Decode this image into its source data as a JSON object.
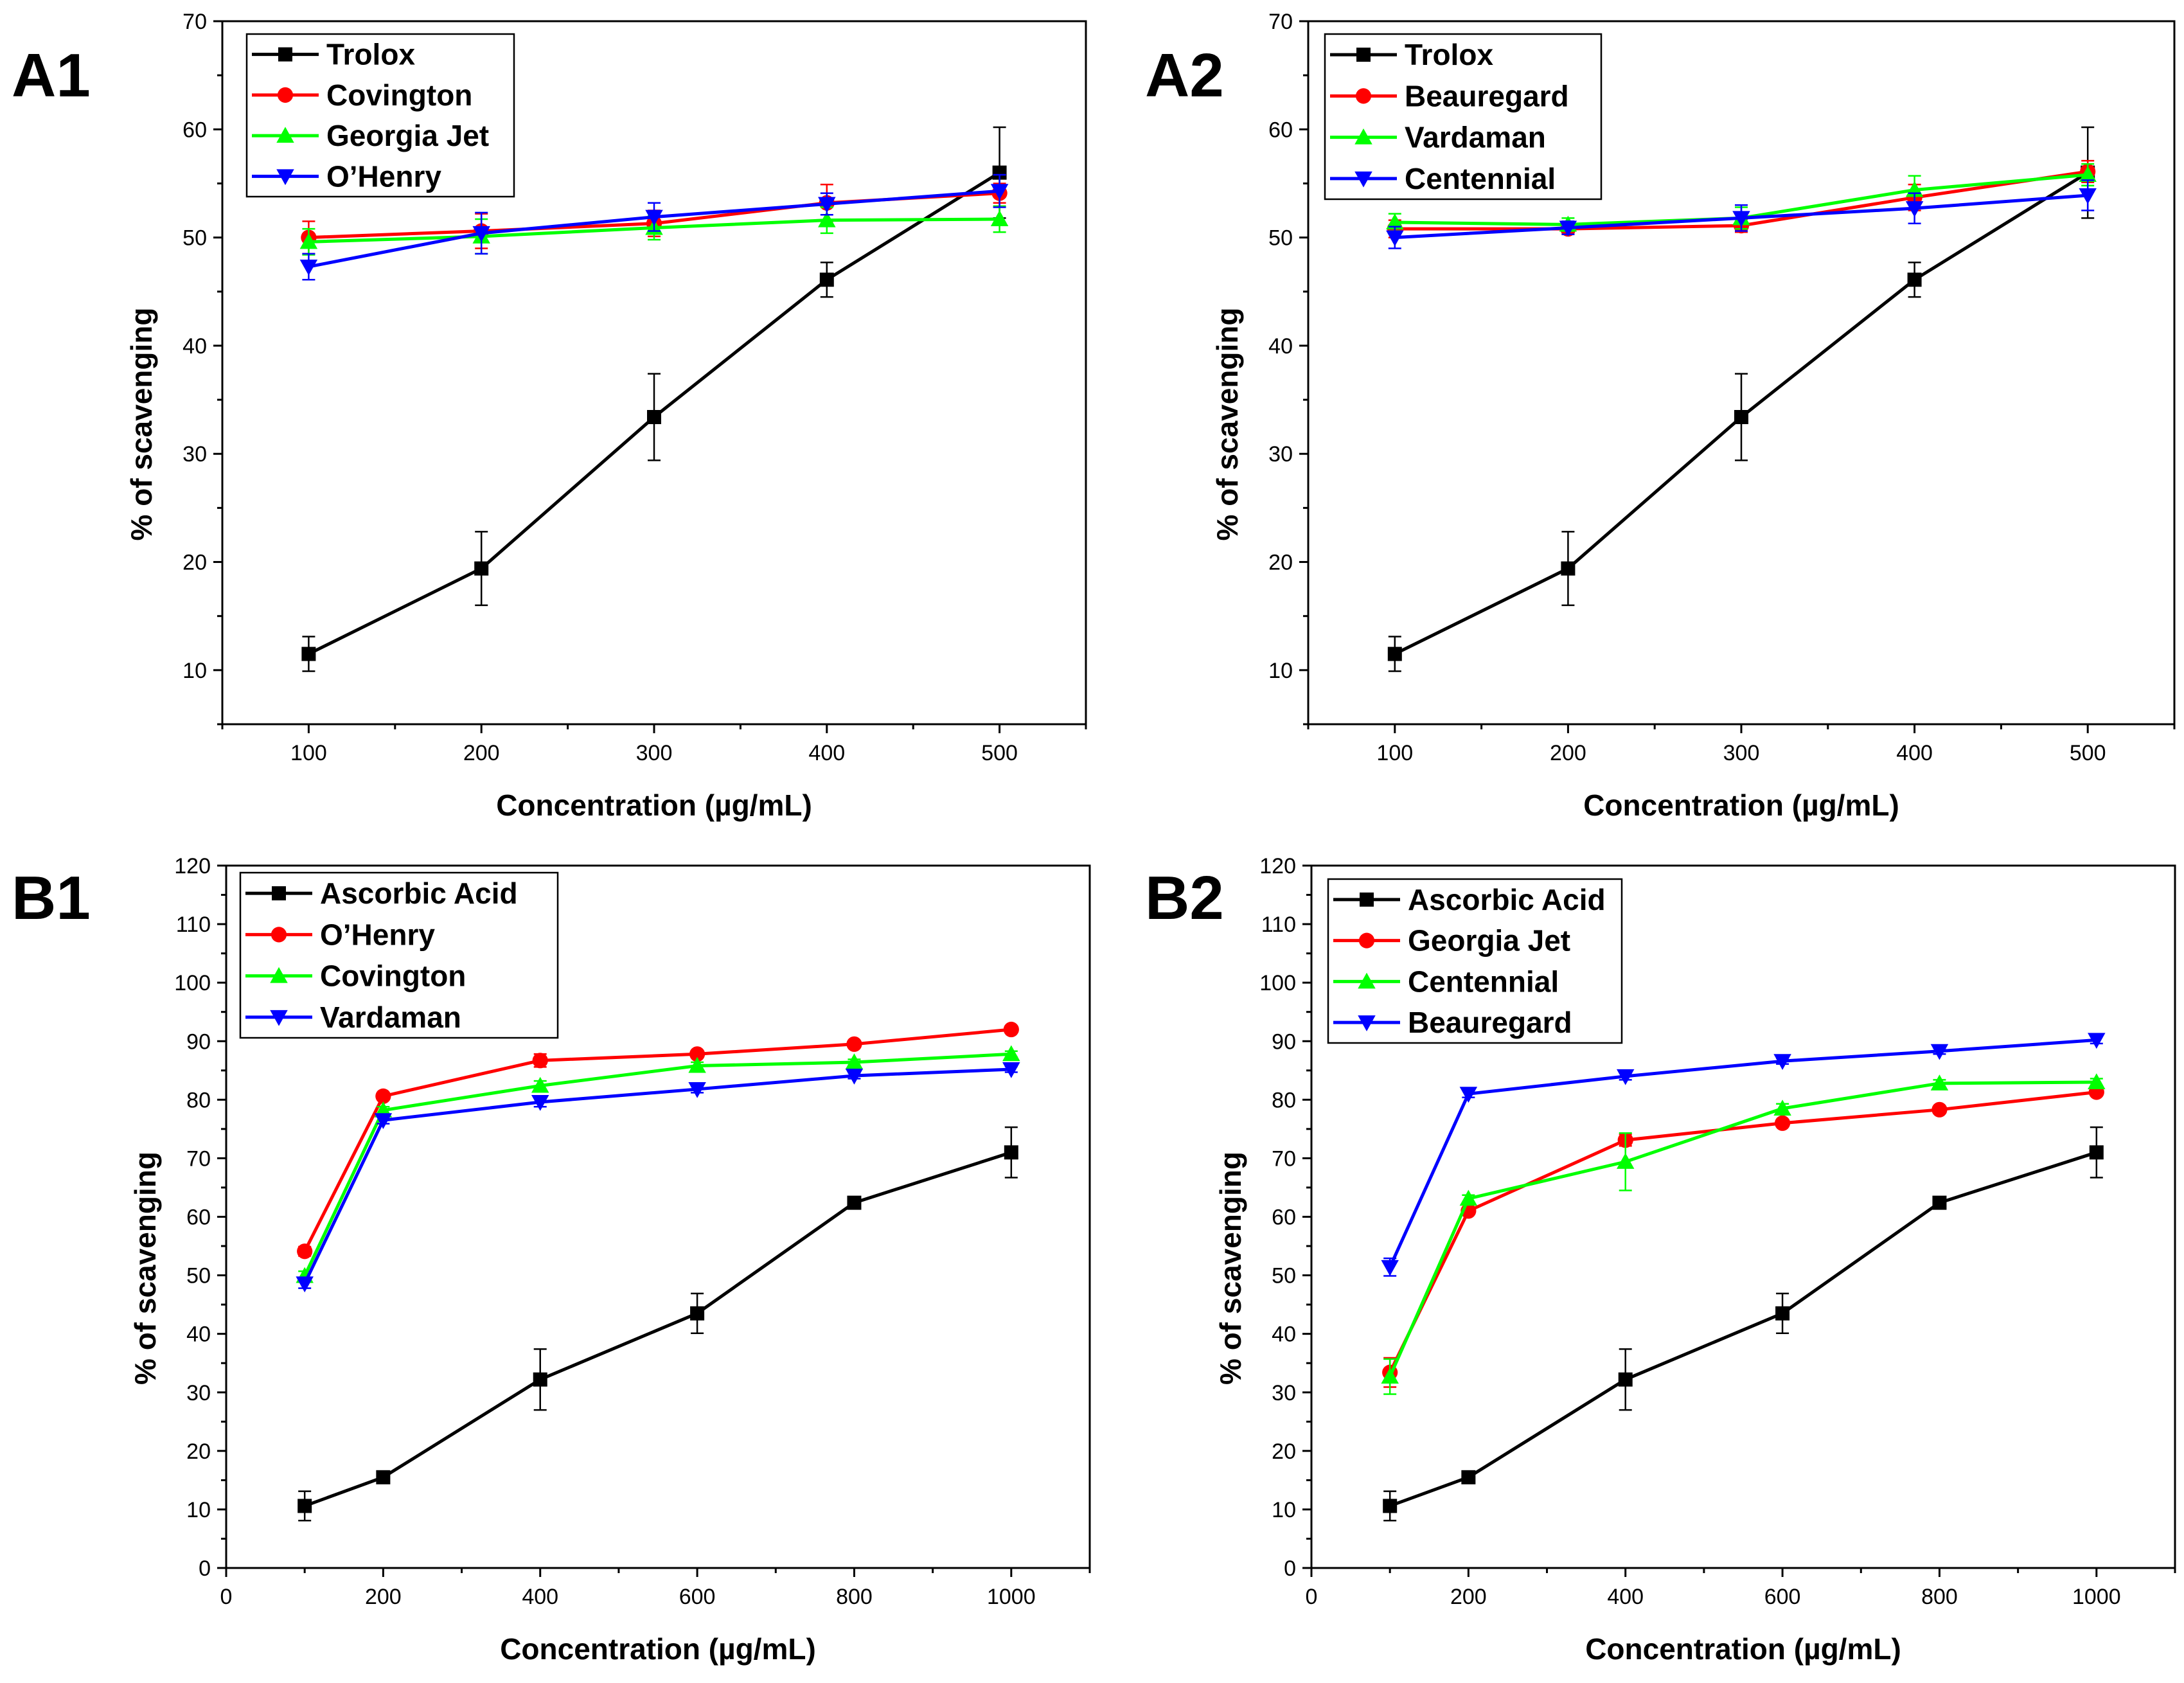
{
  "chart_data": [
    {
      "panel_label": "A1",
      "type": "line",
      "title": "",
      "xlabel": "Concentration (µg/mL)",
      "ylabel": "% of scavenging",
      "xlim": [
        50,
        550
      ],
      "ylim": [
        5,
        70
      ],
      "x_ticks": [
        100,
        200,
        300,
        400,
        500
      ],
      "y_ticks": [
        10,
        20,
        30,
        40,
        50,
        60,
        70
      ],
      "grid": false,
      "legend_position": "top-left",
      "x": [
        100,
        200,
        300,
        400,
        500
      ],
      "series": [
        {
          "name": "Trolox",
          "color": "#000000",
          "marker": "square",
          "values": [
            11.5,
            19.4,
            33.4,
            46.1,
            56.0
          ],
          "errors": [
            1.6,
            3.4,
            4.0,
            1.6,
            4.2
          ]
        },
        {
          "name": "Covington",
          "color": "#ff0000",
          "marker": "circle",
          "values": [
            50.0,
            50.6,
            51.3,
            53.2,
            54.1
          ],
          "errors": [
            1.5,
            1.6,
            1.2,
            1.7,
            0.9
          ]
        },
        {
          "name": "Georgia Jet",
          "color": "#00ff00",
          "marker": "triangle-up",
          "values": [
            49.6,
            50.1,
            50.9,
            51.6,
            51.7
          ],
          "errors": [
            1.2,
            1.6,
            1.1,
            1.2,
            1.2
          ]
        },
        {
          "name": "O’Henry",
          "color": "#0000ff",
          "marker": "triangle-down",
          "values": [
            47.3,
            50.4,
            51.9,
            53.1,
            54.3
          ],
          "errors": [
            1.2,
            1.9,
            1.3,
            1.0,
            1.5
          ]
        }
      ]
    },
    {
      "panel_label": "A2",
      "type": "line",
      "title": "",
      "xlabel": "Concentration (µg/mL)",
      "ylabel": "% of scavenging",
      "xlim": [
        50,
        550
      ],
      "ylim": [
        5,
        70
      ],
      "x_ticks": [
        100,
        200,
        300,
        400,
        500
      ],
      "y_ticks": [
        10,
        20,
        30,
        40,
        50,
        60,
        70
      ],
      "grid": false,
      "legend_position": "top-left",
      "x": [
        100,
        200,
        300,
        400,
        500
      ],
      "series": [
        {
          "name": "Trolox",
          "color": "#000000",
          "marker": "square",
          "values": [
            11.5,
            19.4,
            33.4,
            46.1,
            56.0
          ],
          "errors": [
            1.6,
            3.4,
            4.0,
            1.6,
            4.2
          ]
        },
        {
          "name": "Beauregard",
          "color": "#ff0000",
          "marker": "circle",
          "values": [
            50.8,
            50.8,
            51.1,
            53.7,
            56.1
          ],
          "errors": [
            0.8,
            0.5,
            0.6,
            1.2,
            1.0
          ]
        },
        {
          "name": "Vardaman",
          "color": "#00ff00",
          "marker": "triangle-up",
          "values": [
            51.4,
            51.2,
            51.8,
            54.4,
            55.8
          ],
          "errors": [
            0.8,
            0.6,
            1.0,
            1.3,
            1.0
          ]
        },
        {
          "name": "Centennial",
          "color": "#0000ff",
          "marker": "triangle-down",
          "values": [
            50.0,
            50.9,
            51.8,
            52.7,
            53.9
          ],
          "errors": [
            1.0,
            0.6,
            1.2,
            1.4,
            1.4
          ]
        }
      ]
    },
    {
      "panel_label": "B1",
      "type": "line",
      "title": "",
      "xlabel": "Concentration (µg/mL)",
      "ylabel": "% of scavenging",
      "xlim": [
        0,
        1100
      ],
      "ylim": [
        0,
        120
      ],
      "x_ticks": [
        0,
        200,
        400,
        600,
        800,
        1000
      ],
      "y_ticks": [
        0,
        10,
        20,
        30,
        40,
        50,
        60,
        70,
        80,
        90,
        100,
        110,
        120
      ],
      "grid": false,
      "legend_position": "top-left",
      "x": [
        100,
        200,
        400,
        600,
        800,
        1000
      ],
      "series": [
        {
          "name": "Ascorbic Acid",
          "color": "#000000",
          "marker": "square",
          "values": [
            10.6,
            15.5,
            32.2,
            43.5,
            62.4,
            71.0
          ],
          "errors": [
            2.5,
            0.5,
            5.2,
            3.4,
            0.5,
            4.3
          ]
        },
        {
          "name": "O’Henry",
          "color": "#ff0000",
          "marker": "circle",
          "values": [
            54.1,
            80.6,
            86.7,
            87.8,
            89.5,
            92.0
          ],
          "errors": [
            0.8,
            0.6,
            1.1,
            0.6,
            0.5,
            0.5
          ]
        },
        {
          "name": "Covington",
          "color": "#00ff00",
          "marker": "triangle-up",
          "values": [
            49.9,
            78.2,
            82.4,
            85.8,
            86.4,
            87.8
          ],
          "errors": [
            0.8,
            0.6,
            0.8,
            0.6,
            0.5,
            0.5
          ]
        },
        {
          "name": "Vardaman",
          "color": "#0000ff",
          "marker": "triangle-down",
          "values": [
            48.6,
            76.5,
            79.6,
            81.8,
            84.1,
            85.2
          ],
          "errors": [
            0.8,
            0.6,
            0.8,
            0.6,
            0.5,
            0.5
          ]
        }
      ]
    },
    {
      "panel_label": "B2",
      "type": "line",
      "title": "",
      "xlabel": "Concentration (µg/mL)",
      "ylabel": "% of scavenging",
      "xlim": [
        0,
        1100
      ],
      "ylim": [
        0,
        120
      ],
      "x_ticks": [
        0,
        200,
        400,
        600,
        800,
        1000
      ],
      "y_ticks": [
        0,
        10,
        20,
        30,
        40,
        50,
        60,
        70,
        80,
        90,
        100,
        110,
        120
      ],
      "grid": false,
      "legend_position": "top-left",
      "x": [
        100,
        200,
        400,
        600,
        800,
        1000
      ],
      "series": [
        {
          "name": "Ascorbic Acid",
          "color": "#000000",
          "marker": "square",
          "values": [
            10.6,
            15.5,
            32.2,
            43.5,
            62.4,
            71.0
          ],
          "errors": [
            2.5,
            0.5,
            5.2,
            3.4,
            0.5,
            4.3
          ]
        },
        {
          "name": "Georgia Jet",
          "color": "#ff0000",
          "marker": "circle",
          "values": [
            33.4,
            61.0,
            73.1,
            76.0,
            78.3,
            81.3
          ],
          "errors": [
            2.5,
            0.6,
            1.0,
            0.6,
            0.5,
            0.6
          ]
        },
        {
          "name": "Centennial",
          "color": "#00ff00",
          "marker": "triangle-up",
          "values": [
            32.7,
            63.1,
            69.4,
            78.5,
            82.8,
            83.0
          ],
          "errors": [
            3.0,
            0.6,
            4.9,
            0.8,
            0.6,
            0.6
          ]
        },
        {
          "name": "Beauregard",
          "color": "#0000ff",
          "marker": "triangle-down",
          "values": [
            51.4,
            81.0,
            84.0,
            86.6,
            88.3,
            90.2
          ],
          "errors": [
            1.5,
            0.6,
            0.6,
            0.5,
            0.5,
            0.6
          ]
        }
      ]
    }
  ]
}
